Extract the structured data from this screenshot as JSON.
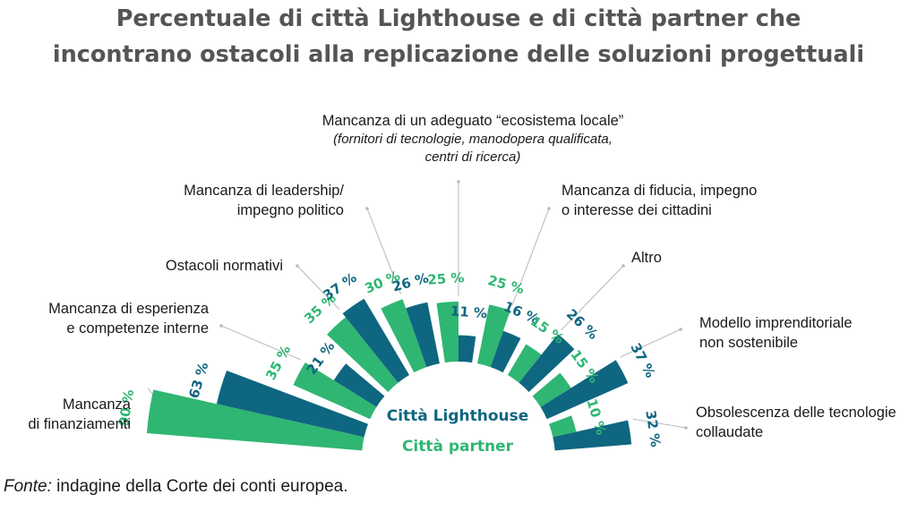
{
  "title_line1": "Percentuale di città Lighthouse e di città partner che",
  "title_line2": "incontrano ostacoli alla replicazione delle soluzioni progettuali",
  "source_label": "Fonte:",
  "source_text": " indagine della Corte dei conti europea.",
  "colors": {
    "lighthouse": "#0f6680",
    "partner": "#2fb673",
    "leader": "#b9b9b9"
  },
  "chart_data": {
    "type": "bar",
    "layout": "radial-fan",
    "title": "Percentuale di città Lighthouse e di città partner che incontrano ostacoli alla replicazione delle soluzioni progettuali",
    "unit": "%",
    "categories": [
      "Mancanza di finanziamenti",
      "Mancanza di esperienza e competenze interne",
      "Ostacoli normativi",
      "Mancanza di leadership/ impegno politico",
      "Mancanza di un adeguato “ecosistema locale” (fornitori di tecnologie, manodopera qualificata, centri di ricerca)",
      "Mancanza di fiducia, impegno o interesse dei cittadini",
      "Altro",
      "Modello imprenditoriale non sostenibile",
      "Obsolescenza delle tecnologie collaudate"
    ],
    "series": [
      {
        "name": "Città Lighthouse",
        "values": [
          63,
          21,
          37,
          26,
          11,
          16,
          26,
          37,
          32
        ]
      },
      {
        "name": "Città partner",
        "values": [
          90,
          35,
          35,
          30,
          25,
          25,
          15,
          15,
          10
        ]
      }
    ],
    "legend": [
      "Città Lighthouse",
      "Città partner"
    ],
    "category_labels": [
      {
        "lines": [
          "Mancanza",
          "di finanziamenti"
        ]
      },
      {
        "lines": [
          "Mancanza di esperienza",
          "e competenze interne"
        ]
      },
      {
        "lines": [
          "Ostacoli normativi"
        ]
      },
      {
        "lines": [
          "Mancanza di leadership/",
          "impegno politico"
        ]
      },
      {
        "lines": [
          "Mancanza di un adeguato “ecosistema locale”"
        ],
        "italic_lines": [
          "(fornitori di tecnologie, manodopera qualificata,",
          "centri di ricerca)"
        ]
      },
      {
        "lines": [
          "Mancanza di fiducia, impegno",
          "o interesse dei cittadini"
        ]
      },
      {
        "lines": [
          "Altro"
        ]
      },
      {
        "lines": [
          "Modello imprenditoriale",
          "non sostenibile"
        ]
      },
      {
        "lines": [
          "Obsolescenza delle tecnologie",
          "collaudate"
        ]
      }
    ]
  }
}
